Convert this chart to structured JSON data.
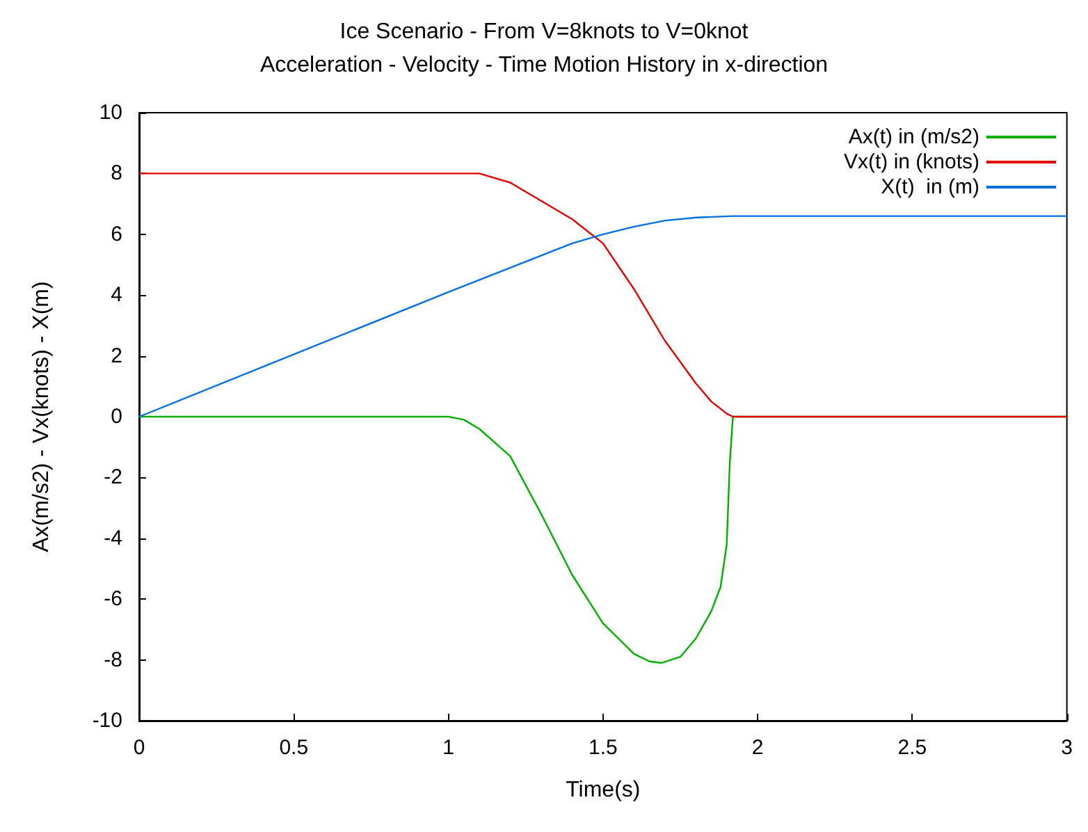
{
  "chart_data": {
    "type": "line",
    "title": "Ice Scenario - From V=8knots to V=0knot",
    "subtitle": "Acceleration - Velocity - Time Motion History in x-direction",
    "xlabel": "Time(s)",
    "ylabel": "Ax(m/s2) - Vx(knots) - X(m)",
    "xlim": [
      0,
      3
    ],
    "xticks": [
      0,
      0.5,
      1,
      1.5,
      2,
      2.5,
      3
    ],
    "ylim": [
      -10,
      10
    ],
    "yticks": [
      -10,
      -8,
      -6,
      -4,
      -2,
      0,
      2,
      4,
      6,
      8,
      10
    ],
    "grid": false,
    "legend": "top right",
    "marker": "none",
    "line_style": "solid",
    "series": [
      {
        "name": "Ax(t) in (m/s2)",
        "color": "#00b000",
        "x": [
          0,
          1.0,
          1.05,
          1.1,
          1.2,
          1.3,
          1.4,
          1.5,
          1.6,
          1.65,
          1.69,
          1.75,
          1.8,
          1.85,
          1.88,
          1.9,
          1.91,
          1.92,
          3
        ],
        "values": [
          0,
          0,
          -0.1,
          -0.4,
          -1.3,
          -3.2,
          -5.2,
          -6.8,
          -7.8,
          -8.05,
          -8.1,
          -7.9,
          -7.3,
          -6.4,
          -5.6,
          -4.2,
          -1.5,
          0,
          0
        ]
      },
      {
        "name": "Vx(t) in (knots)",
        "color": "#e00000",
        "x": [
          0,
          1.1,
          1.2,
          1.3,
          1.4,
          1.5,
          1.6,
          1.7,
          1.8,
          1.85,
          1.9,
          1.92,
          3
        ],
        "values": [
          8,
          8,
          7.7,
          7.1,
          6.5,
          5.7,
          4.2,
          2.5,
          1.1,
          0.5,
          0.1,
          0,
          0
        ]
      },
      {
        "name": "X(t)  in (m)",
        "color": "#0070e0",
        "x": [
          0,
          1.0,
          1.1,
          1.2,
          1.3,
          1.4,
          1.5,
          1.6,
          1.7,
          1.8,
          1.92,
          3
        ],
        "values": [
          0,
          4.1,
          4.5,
          4.9,
          5.3,
          5.7,
          6.0,
          6.25,
          6.45,
          6.55,
          6.6,
          6.6
        ]
      }
    ]
  }
}
